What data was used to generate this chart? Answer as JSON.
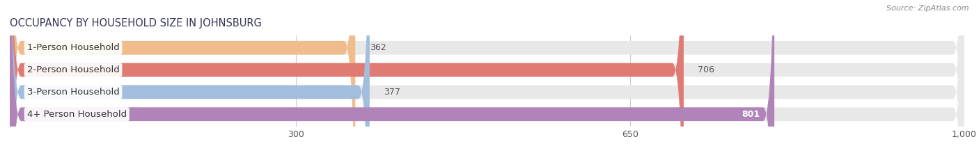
{
  "title": "OCCUPANCY BY HOUSEHOLD SIZE IN JOHNSBURG",
  "source": "Source: ZipAtlas.com",
  "categories": [
    "1-Person Household",
    "2-Person Household",
    "3-Person Household",
    "4+ Person Household"
  ],
  "values": [
    362,
    706,
    377,
    801
  ],
  "bar_colors": [
    "#f0bc8c",
    "#e07b73",
    "#a3bedd",
    "#b084b8"
  ],
  "bar_bg_color": "#e8e8e8",
  "xlim": [
    0,
    1000
  ],
  "xticks": [
    300,
    650,
    1000
  ],
  "figsize": [
    14.06,
    2.33
  ],
  "dpi": 100,
  "bar_height": 0.62,
  "title_fontsize": 10.5,
  "label_fontsize": 9.5,
  "value_fontsize": 9.0,
  "tick_fontsize": 9.0,
  "source_fontsize": 8.0
}
